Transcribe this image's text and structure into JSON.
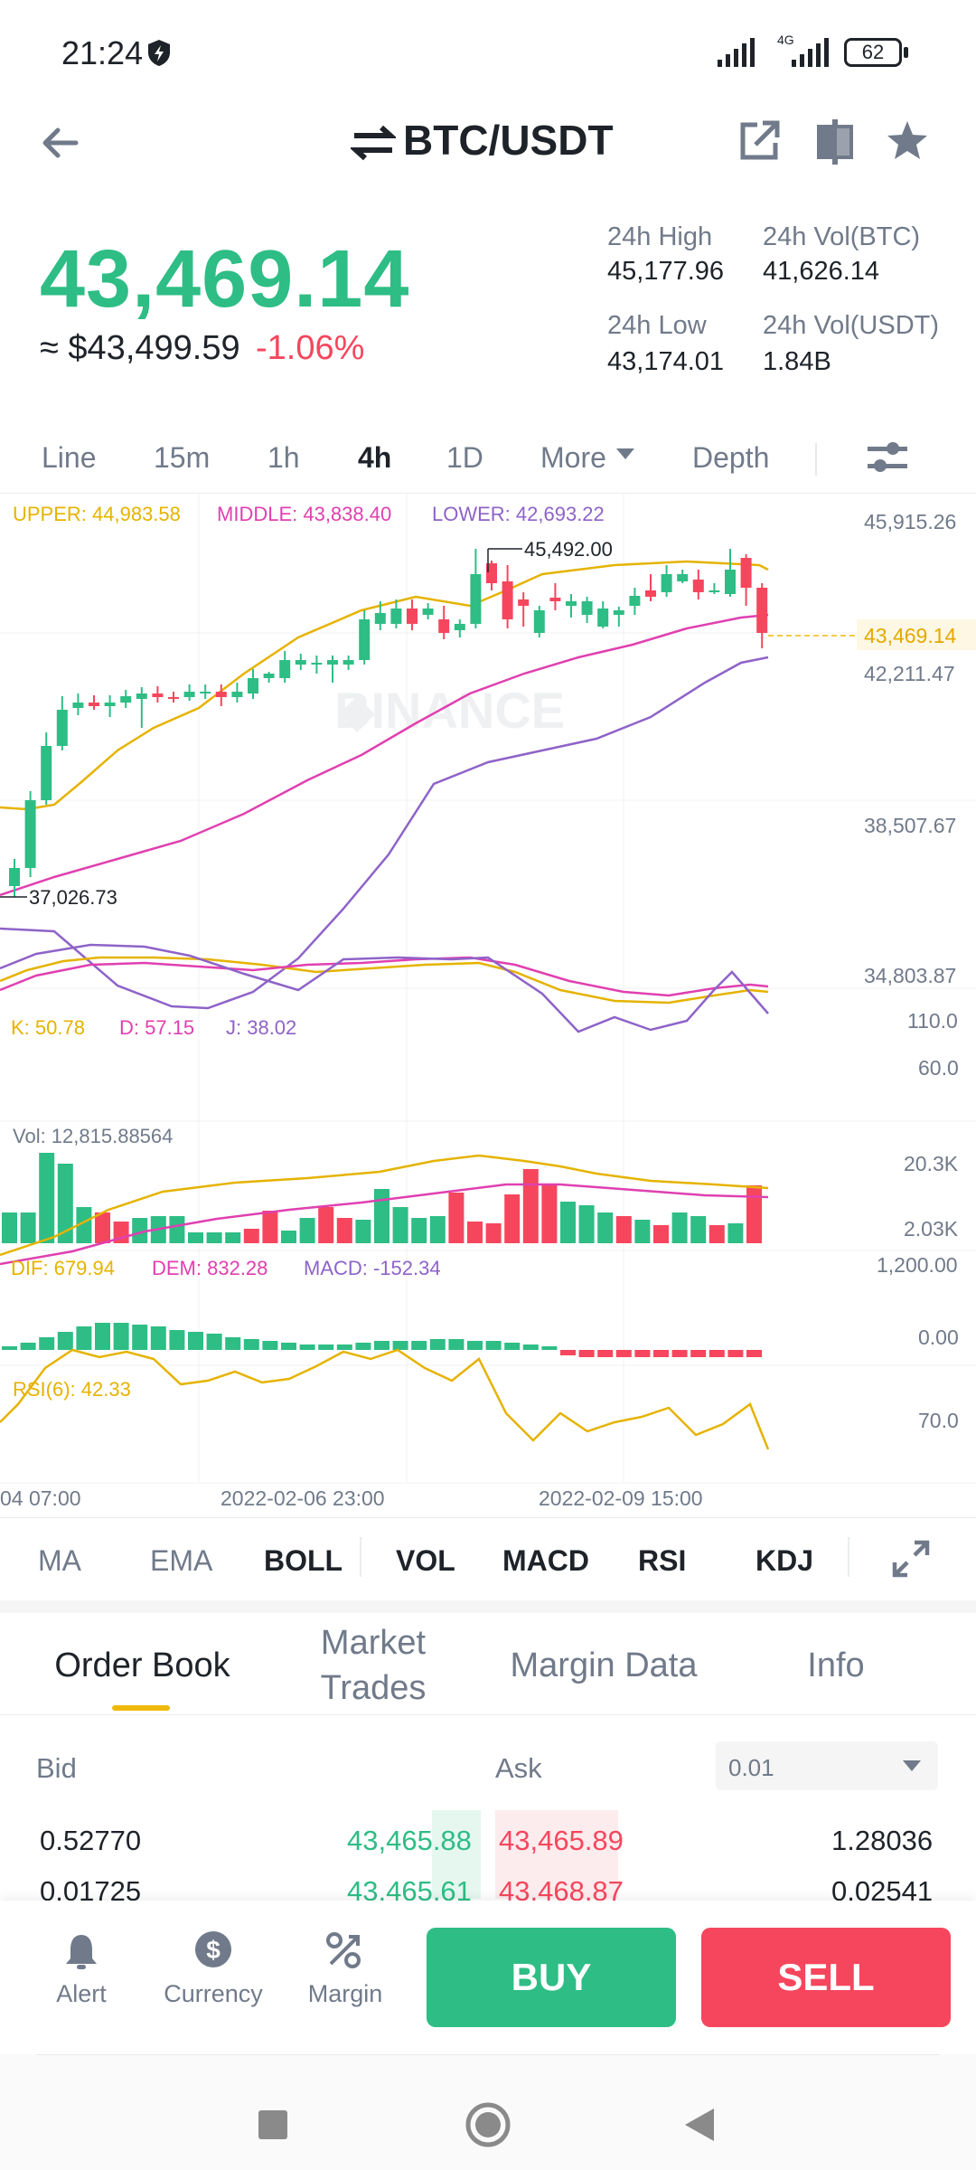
{
  "status": {
    "time": "21:24",
    "battery": "62",
    "network": "4G"
  },
  "header": {
    "pair": "BTC/USDT"
  },
  "price": {
    "last": "43,469.14",
    "usd": "≈ $43,499.59",
    "change": "-1.06%"
  },
  "stats": {
    "high_label": "24h High",
    "high": "45,177.96",
    "volbtc_label": "24h Vol(BTC)",
    "volbtc": "41,626.14",
    "low_label": "24h Low",
    "low": "43,174.01",
    "volusdt_label": "24h Vol(USDT)",
    "volusdt": "1.84B"
  },
  "timeframes": [
    "Line",
    "15m",
    "1h",
    "4h",
    "1D",
    "More",
    "Depth"
  ],
  "boll": {
    "upper": "UPPER: 44,983.58",
    "middle": "MIDDLE: 43,838.40",
    "lower": "LOWER: 42,693.22"
  },
  "price_axis": [
    "45,915.26",
    "42,211.47",
    "38,507.67",
    "34,803.87"
  ],
  "current_price_tag": "43,469.14",
  "max_label": "45,492.00",
  "min_label": "37,026.73",
  "watermark": "BINANCE",
  "kdj": {
    "k": "K: 50.78",
    "d": "D: 57.15",
    "j": "J: 38.02",
    "axis": [
      "110.0",
      "60.0"
    ]
  },
  "vol": {
    "label": "Vol: 12,815.88564",
    "axis": [
      "20.3K",
      "2.03K"
    ]
  },
  "macd": {
    "dif": "DIF: 679.94",
    "dem": "DEM: 832.28",
    "macd": "MACD: -152.34",
    "axis": [
      "1,200.00",
      "0.00"
    ]
  },
  "rsi": {
    "label": "RSI(6): 42.33",
    "axis": [
      "70.0"
    ]
  },
  "dates": [
    "04 07:00",
    "2022-02-06 23:00",
    "2022-02-09 15:00"
  ],
  "indicator_tabs": [
    "MA",
    "EMA",
    "BOLL",
    "VOL",
    "MACD",
    "RSI",
    "KDJ"
  ],
  "ob_tabs": [
    "Order Book",
    "Market\nTrades",
    "Margin Data",
    "Info"
  ],
  "orderbook": {
    "bid_label": "Bid",
    "ask_label": "Ask",
    "precision": "0.01",
    "rows": [
      {
        "bid_qty": "0.52770",
        "bid": "43,465.88",
        "ask": "43,465.89",
        "ask_qty": "1.28036"
      },
      {
        "bid_qty": "0.01725",
        "bid": "43,465.61",
        "ask": "43,468.87",
        "ask_qty": "0.02541"
      }
    ]
  },
  "bottom": {
    "alert": "Alert",
    "currency": "Currency",
    "margin": "Margin",
    "buy": "BUY",
    "sell": "SELL"
  },
  "colors": {
    "green": "#2ebd85",
    "red": "#f6465d",
    "yellow": "#f0b90b",
    "upper": "#e5b300",
    "middle": "#e040b0",
    "lower": "#8e63c8"
  }
}
